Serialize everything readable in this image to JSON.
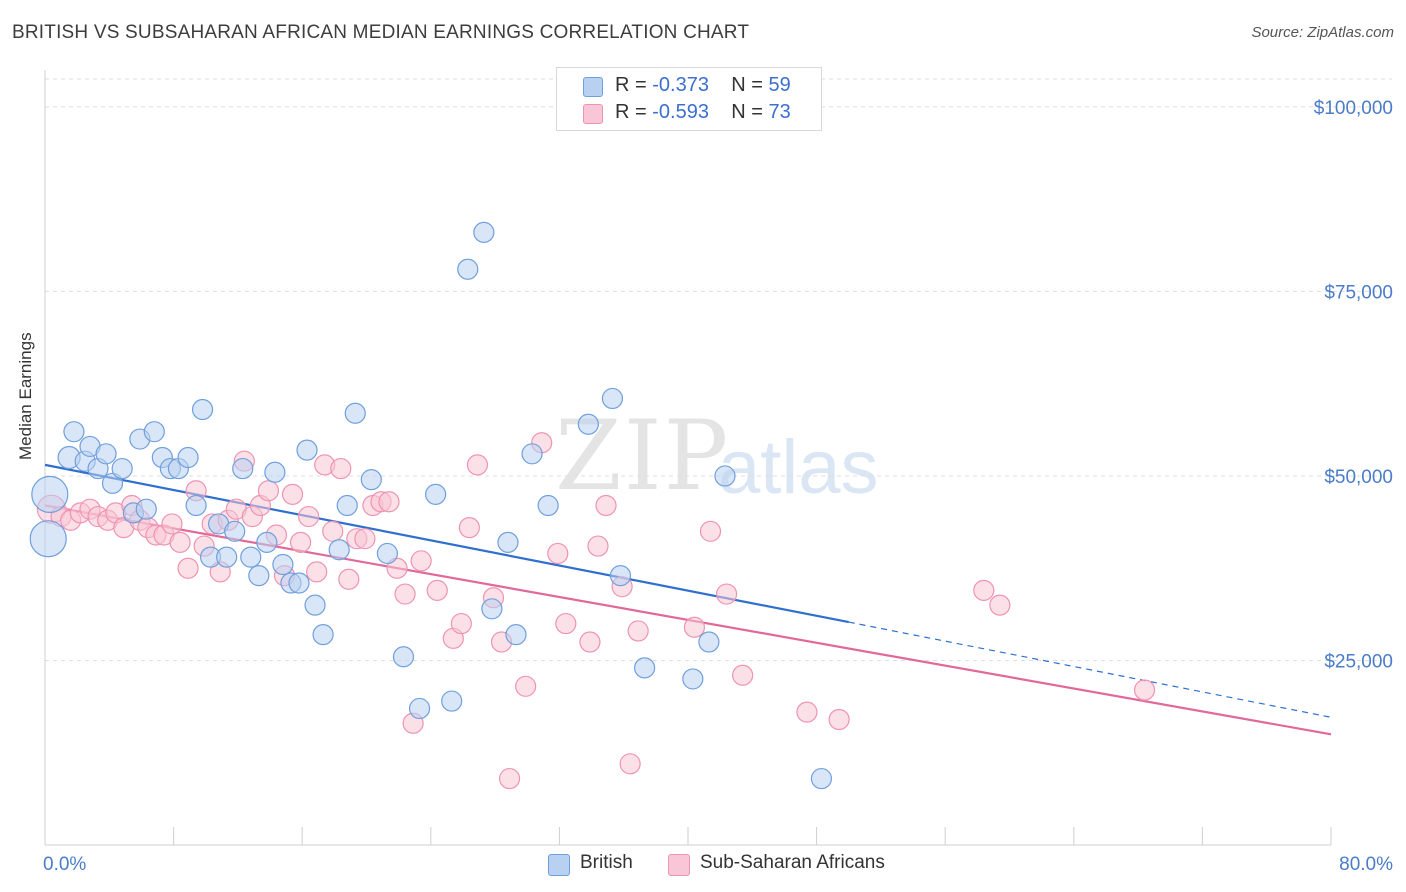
{
  "header": {
    "title": "BRITISH VS SUBSAHARAN AFRICAN MEDIAN EARNINGS CORRELATION CHART",
    "source": "Source: ZipAtlas.com"
  },
  "watermark": {
    "zip": "ZIP",
    "atlas": "atlas"
  },
  "legend": {
    "british": {
      "r_label": "R = ",
      "r_value": "-0.373",
      "n_label": "N = ",
      "n_value": "59"
    },
    "subsaharan": {
      "r_label": "R = ",
      "r_value": "-0.593",
      "n_label": "N = ",
      "n_value": "73"
    }
  },
  "bottom_legend": {
    "british": "British",
    "subsaharan": "Sub-Saharan Africans"
  },
  "colors": {
    "british_fill": "#b9d1f0",
    "british_stroke": "#6f9fde",
    "british_line": "#2f6fd0",
    "subsaharan_fill": "#f8c6d6",
    "subsaharan_stroke": "#ef93b2",
    "subsaharan_line": "#e2689a",
    "tick_text": "#4a7cc9",
    "grid": "#dedede"
  },
  "chart_data": {
    "type": "scatter",
    "title": "BRITISH VS SUBSAHARAN AFRICAN MEDIAN EARNINGS CORRELATION CHART",
    "xlabel": "",
    "ylabel": "Median Earnings",
    "xlim": [
      0,
      80
    ],
    "ylim": [
      0,
      105000
    ],
    "x_tick_labels": [
      "0.0%",
      "80.0%"
    ],
    "y_ticks": [
      25000,
      50000,
      75000,
      100000
    ],
    "y_tick_labels": [
      "$25,000",
      "$50,000",
      "$75,000",
      "$100,000"
    ],
    "grid": true,
    "legend_position": "top-center",
    "series": [
      {
        "name": "British",
        "r": -0.373,
        "n": 59,
        "trend": {
          "x0": 0,
          "y0": 51500,
          "x1": 50,
          "y1": 30200,
          "dashed_to_x": 80,
          "dashed_to_y": 17300
        },
        "points": [
          [
            0.3,
            47500,
            18
          ],
          [
            0.2,
            41500,
            18
          ],
          [
            1.5,
            52500,
            11
          ],
          [
            1.8,
            56000,
            10
          ],
          [
            2.5,
            52000,
            10
          ],
          [
            2.8,
            54000,
            10
          ],
          [
            3.3,
            51000,
            10
          ],
          [
            3.8,
            53000,
            10
          ],
          [
            4.2,
            49000,
            10
          ],
          [
            4.8,
            51000,
            10
          ],
          [
            5.5,
            45000,
            10
          ],
          [
            5.9,
            55000,
            10
          ],
          [
            6.3,
            45500,
            10
          ],
          [
            6.8,
            56000,
            10
          ],
          [
            7.3,
            52500,
            10
          ],
          [
            7.8,
            51000,
            10
          ],
          [
            8.3,
            51000,
            10
          ],
          [
            8.9,
            52500,
            10
          ],
          [
            9.4,
            46000,
            10
          ],
          [
            9.8,
            59000,
            10
          ],
          [
            10.3,
            39000,
            10
          ],
          [
            10.8,
            43500,
            10
          ],
          [
            11.3,
            39000,
            10
          ],
          [
            11.8,
            42500,
            10
          ],
          [
            12.3,
            51000,
            10
          ],
          [
            12.8,
            39000,
            10
          ],
          [
            13.3,
            36500,
            10
          ],
          [
            13.8,
            41000,
            10
          ],
          [
            14.3,
            50500,
            10
          ],
          [
            14.8,
            38000,
            10
          ],
          [
            15.3,
            35500,
            10
          ],
          [
            15.8,
            35500,
            10
          ],
          [
            16.3,
            53500,
            10
          ],
          [
            16.8,
            32500,
            10
          ],
          [
            17.3,
            28500,
            10
          ],
          [
            18.3,
            40000,
            10
          ],
          [
            18.8,
            46000,
            10
          ],
          [
            19.3,
            58500,
            10
          ],
          [
            20.3,
            49500,
            10
          ],
          [
            21.3,
            39500,
            10
          ],
          [
            22.3,
            25500,
            10
          ],
          [
            23.3,
            18500,
            10
          ],
          [
            24.3,
            47500,
            10
          ],
          [
            25.3,
            19500,
            10
          ],
          [
            26.3,
            78000,
            10
          ],
          [
            27.3,
            83000,
            10
          ],
          [
            27.8,
            32000,
            10
          ],
          [
            28.8,
            41000,
            10
          ],
          [
            29.3,
            28500,
            10
          ],
          [
            30.3,
            53000,
            10
          ],
          [
            31.3,
            46000,
            10
          ],
          [
            33.8,
            57000,
            10
          ],
          [
            35.3,
            60500,
            10
          ],
          [
            35.8,
            36500,
            10
          ],
          [
            37.3,
            24000,
            10
          ],
          [
            40.3,
            22500,
            10
          ],
          [
            41.3,
            27500,
            10
          ],
          [
            42.3,
            50000,
            10
          ],
          [
            48.3,
            9000,
            10
          ]
        ]
      },
      {
        "name": "Sub-Saharan Africans",
        "r": -0.593,
        "n": 73,
        "trend": {
          "x0": 0,
          "y0": 46000,
          "x1": 80,
          "y1": 15000
        },
        "points": [
          [
            0.4,
            45500,
            14
          ],
          [
            1.0,
            44500,
            10
          ],
          [
            1.6,
            44000,
            10
          ],
          [
            2.2,
            45000,
            10
          ],
          [
            2.8,
            45500,
            10
          ],
          [
            3.3,
            44500,
            10
          ],
          [
            3.9,
            44000,
            10
          ],
          [
            4.4,
            45000,
            10
          ],
          [
            4.9,
            43000,
            10
          ],
          [
            5.4,
            46000,
            10
          ],
          [
            5.9,
            44000,
            10
          ],
          [
            6.4,
            43000,
            10
          ],
          [
            6.9,
            42000,
            10
          ],
          [
            7.4,
            42000,
            10
          ],
          [
            7.9,
            43500,
            10
          ],
          [
            8.4,
            41000,
            10
          ],
          [
            8.9,
            37500,
            10
          ],
          [
            9.4,
            48000,
            10
          ],
          [
            9.9,
            40500,
            10
          ],
          [
            10.4,
            43500,
            10
          ],
          [
            10.9,
            37000,
            10
          ],
          [
            11.4,
            44000,
            10
          ],
          [
            11.9,
            45500,
            10
          ],
          [
            12.4,
            52000,
            10
          ],
          [
            12.9,
            44500,
            10
          ],
          [
            13.4,
            46000,
            10
          ],
          [
            13.9,
            48000,
            10
          ],
          [
            14.4,
            42000,
            10
          ],
          [
            14.9,
            36500,
            10
          ],
          [
            15.4,
            47500,
            10
          ],
          [
            15.9,
            41000,
            10
          ],
          [
            16.4,
            44500,
            10
          ],
          [
            16.9,
            37000,
            10
          ],
          [
            17.4,
            51500,
            10
          ],
          [
            17.9,
            42500,
            10
          ],
          [
            18.4,
            51000,
            10
          ],
          [
            18.9,
            36000,
            10
          ],
          [
            19.4,
            41500,
            10
          ],
          [
            19.9,
            41500,
            10
          ],
          [
            20.4,
            46000,
            10
          ],
          [
            20.9,
            46500,
            10
          ],
          [
            21.4,
            46500,
            10
          ],
          [
            21.9,
            37500,
            10
          ],
          [
            22.4,
            34000,
            10
          ],
          [
            22.9,
            16500,
            10
          ],
          [
            23.4,
            38500,
            10
          ],
          [
            24.4,
            34500,
            10
          ],
          [
            25.4,
            28000,
            10
          ],
          [
            25.9,
            30000,
            10
          ],
          [
            26.4,
            43000,
            10
          ],
          [
            26.9,
            51500,
            10
          ],
          [
            27.9,
            33500,
            10
          ],
          [
            28.4,
            27500,
            10
          ],
          [
            28.9,
            9000,
            10
          ],
          [
            29.9,
            21500,
            10
          ],
          [
            30.9,
            54500,
            10
          ],
          [
            31.9,
            39500,
            10
          ],
          [
            32.4,
            30000,
            10
          ],
          [
            33.9,
            27500,
            10
          ],
          [
            34.4,
            40500,
            10
          ],
          [
            34.9,
            46000,
            10
          ],
          [
            35.9,
            35000,
            10
          ],
          [
            36.4,
            11000,
            10
          ],
          [
            36.9,
            29000,
            10
          ],
          [
            40.4,
            29500,
            10
          ],
          [
            41.4,
            42500,
            10
          ],
          [
            42.4,
            34000,
            10
          ],
          [
            43.4,
            23000,
            10
          ],
          [
            47.4,
            18000,
            10
          ],
          [
            49.4,
            17000,
            10
          ],
          [
            58.4,
            34500,
            10
          ],
          [
            59.4,
            32500,
            10
          ],
          [
            68.4,
            21000,
            10
          ]
        ]
      }
    ]
  }
}
